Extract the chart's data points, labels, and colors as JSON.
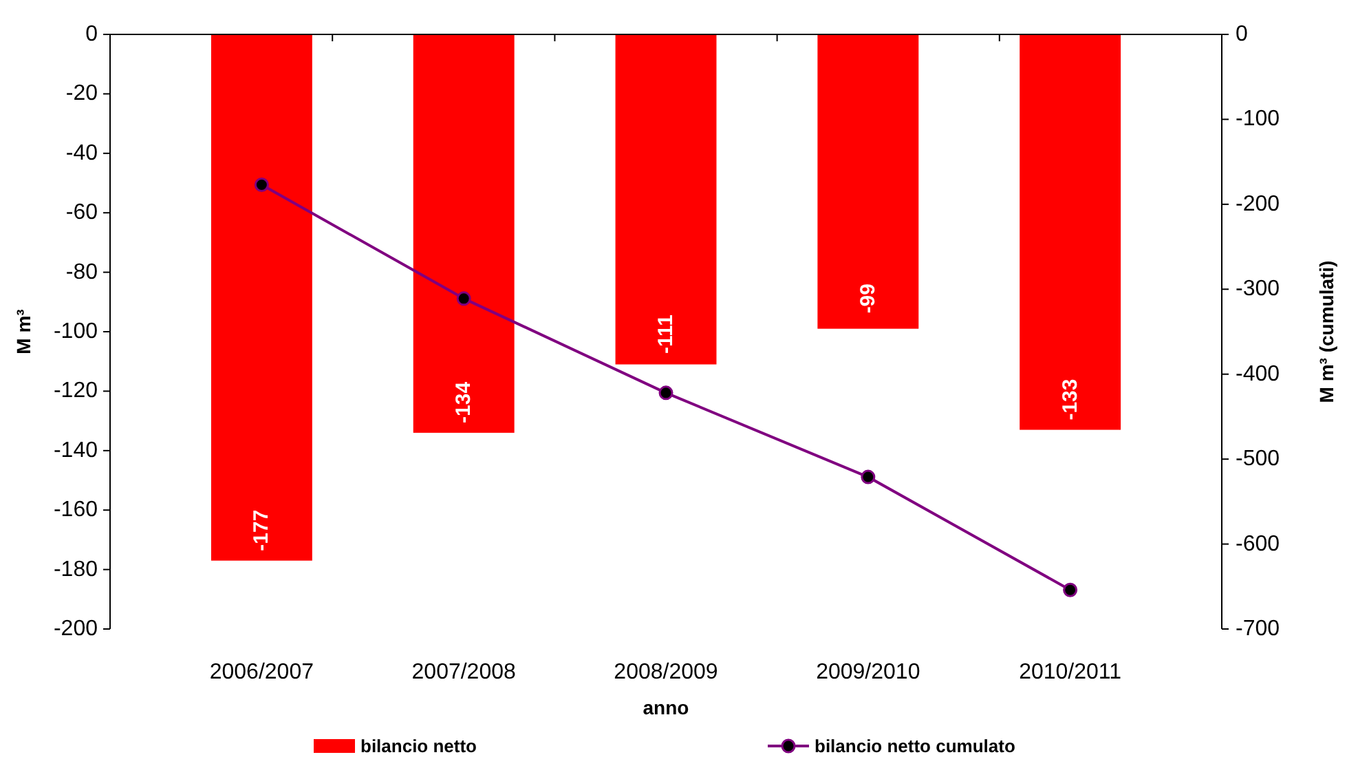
{
  "chart_data": {
    "type": "bar",
    "xlabel": "anno",
    "ylabel": "M m³",
    "y2label": "M m³ (cumulati)",
    "categories": [
      "2006/2007",
      "2007/2008",
      "2008/2009",
      "2009/2010",
      "2010/2011"
    ],
    "series": [
      {
        "name": "bilancio netto",
        "color": "#ff0000",
        "values": [
          -177,
          -134,
          -111,
          -99,
          -133
        ],
        "value_labels": [
          "-177",
          "-134",
          "-111",
          "-99",
          "-133"
        ]
      },
      {
        "name": "bilancio netto cumulato",
        "type": "line",
        "axis": "y2",
        "color": "#800080",
        "marker": "circle",
        "values": [
          -177,
          -311,
          -422,
          -521,
          -654
        ]
      }
    ],
    "ylim": [
      -200,
      0
    ],
    "yticks": [
      0,
      -20,
      -40,
      -60,
      -80,
      -100,
      -120,
      -140,
      -160,
      -180,
      -200
    ],
    "y2lim": [
      -700,
      0
    ],
    "y2ticks": [
      0,
      -100,
      -200,
      -300,
      -400,
      -500,
      -600,
      -700
    ],
    "grid": false,
    "legend": "bottom"
  }
}
